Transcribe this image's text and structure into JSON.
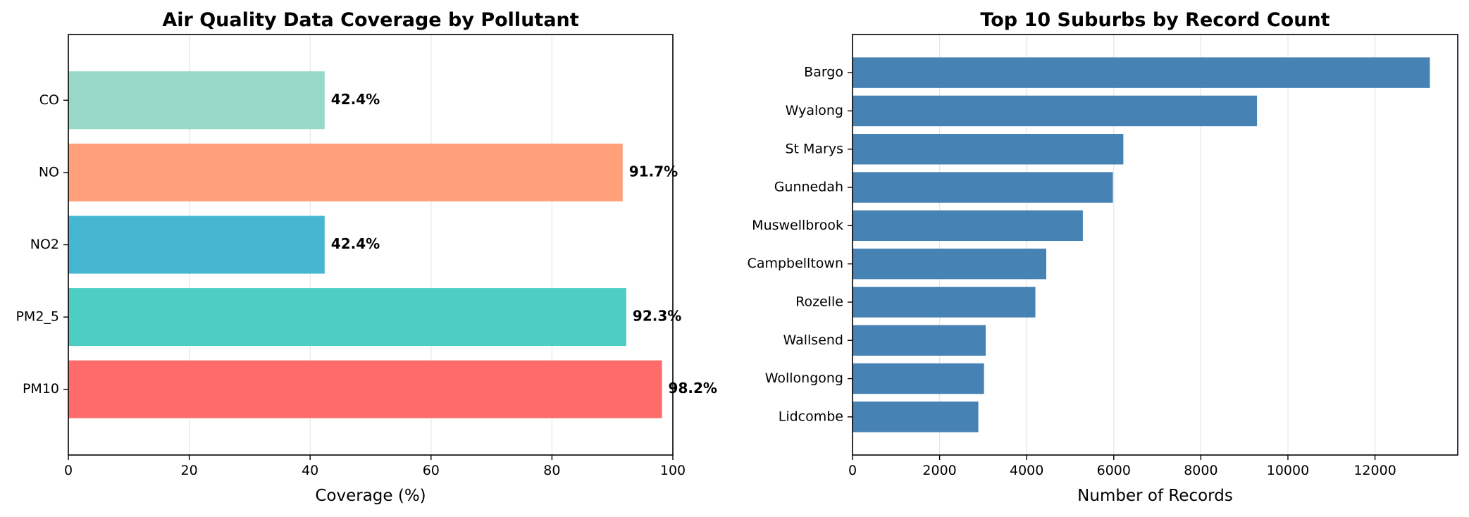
{
  "chart_data": [
    {
      "type": "bar",
      "orientation": "horizontal",
      "title": "Air Quality Data Coverage by Pollutant",
      "xlabel": "Coverage (%)",
      "ylabel": "",
      "xlim": [
        0,
        100
      ],
      "xticks": [
        "0",
        "20",
        "40",
        "60",
        "80",
        "100"
      ],
      "categories": [
        "PM10",
        "PM2_5",
        "NO2",
        "NO",
        "CO"
      ],
      "values": [
        98.2,
        92.3,
        42.4,
        91.7,
        42.4
      ],
      "data_labels": [
        "98.2%",
        "92.3%",
        "42.4%",
        "91.7%",
        "42.4%"
      ],
      "colors": [
        "#ff6b6b",
        "#4ecdc4",
        "#45b7d1",
        "#ffa07a",
        "#98d8c8"
      ],
      "grid": "vertical"
    },
    {
      "type": "bar",
      "orientation": "horizontal",
      "title": "Top 10 Suburbs by Record Count",
      "xlabel": "Number of Records",
      "ylabel": "",
      "xlim": [
        0,
        13900
      ],
      "xticks": [
        "0",
        "2000",
        "4000",
        "6000",
        "8000",
        "10000",
        "12000"
      ],
      "categories": [
        "Lidcombe",
        "Wollongong",
        "Wallsend",
        "Rozelle",
        "Campbelltown",
        "Muswellbrook",
        "Gunnedah",
        "St Marys",
        "Wyalong",
        "Bargo"
      ],
      "values": [
        2890,
        3020,
        3060,
        4200,
        4450,
        5290,
        5980,
        6220,
        9290,
        13260
      ],
      "colors": [
        "#4682b4"
      ],
      "grid": "vertical"
    }
  ]
}
